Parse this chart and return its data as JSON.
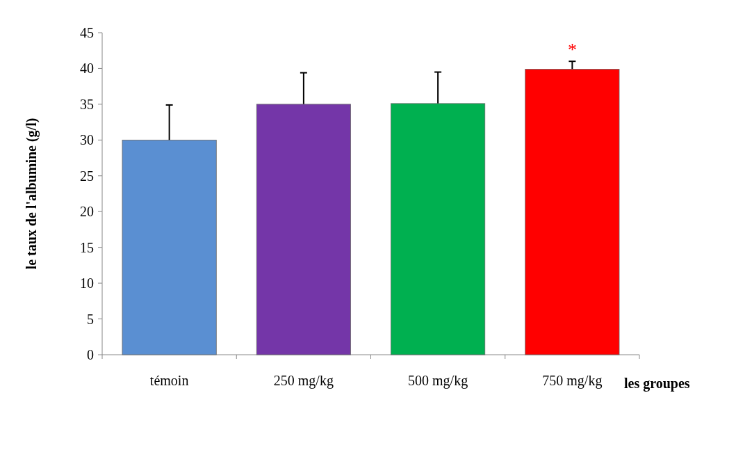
{
  "chart_data": {
    "type": "bar",
    "xlabel": "les groupes",
    "ylabel": "le taux de l'albumine (g/l)",
    "categories": [
      "témoin",
      "250 mg/kg",
      "500 mg/kg",
      "750 mg/kg"
    ],
    "values": [
      30,
      35,
      35.1,
      39.9
    ],
    "colors": [
      "#5a8fd2",
      "#7436a8",
      "#00b050",
      "#ff0000"
    ],
    "errors": [
      4.9,
      4.4,
      4.4,
      1.1
    ],
    "ylim": [
      0,
      45
    ],
    "yticks": [
      0,
      5,
      10,
      15,
      20,
      25,
      30,
      35,
      40,
      45
    ],
    "grid": false,
    "annotations": [
      "*"
    ]
  }
}
